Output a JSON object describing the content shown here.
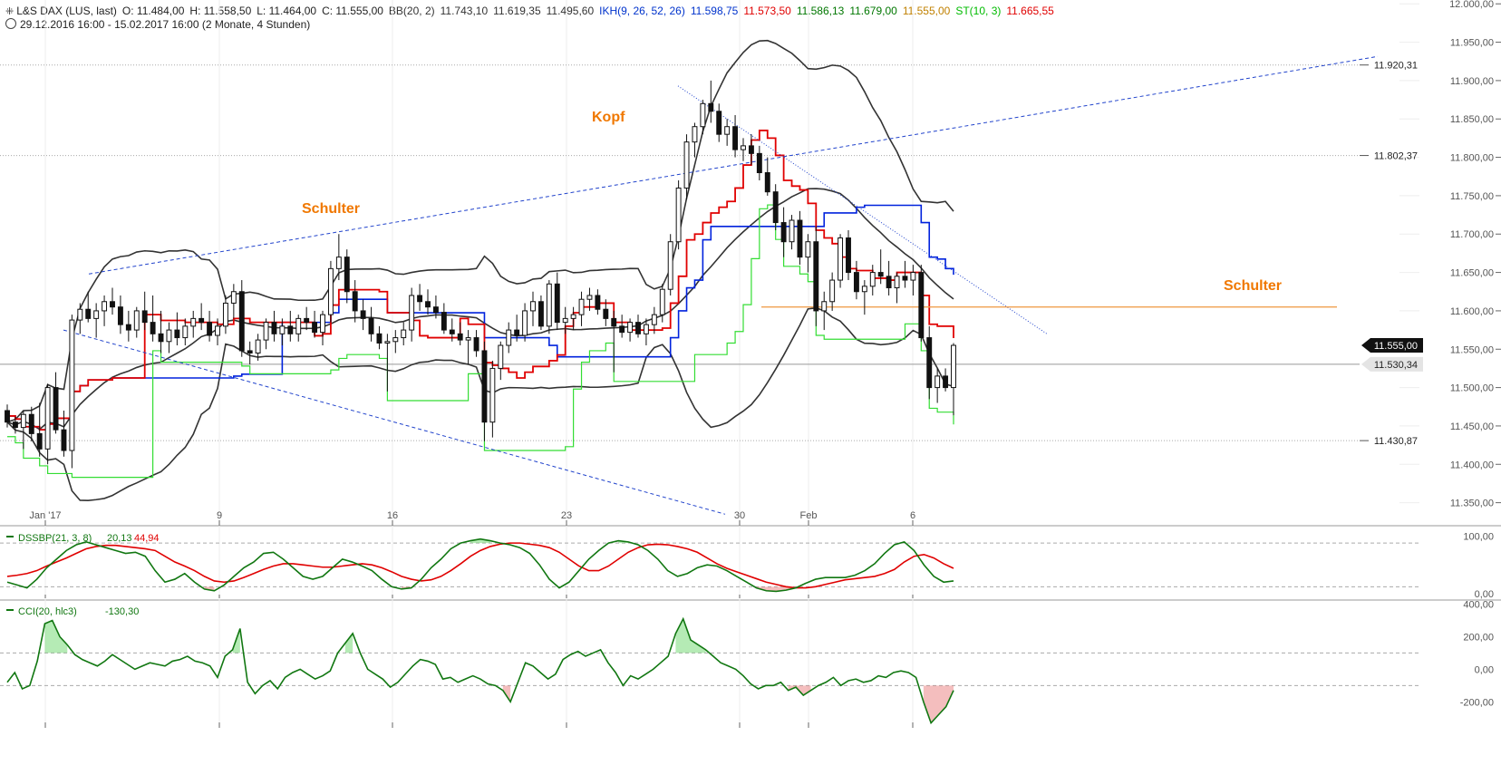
{
  "header": {
    "line1": [
      {
        "text": "L&S DAX (LUS, last)",
        "color": "#222222"
      },
      {
        "text": "O: 11.484,00",
        "color": "#222222"
      },
      {
        "text": "H: 11.558,50",
        "color": "#222222"
      },
      {
        "text": "L: 11.464,00",
        "color": "#222222"
      },
      {
        "text": "C: 11.555,00",
        "color": "#222222"
      },
      {
        "text": "BB(20, 2)",
        "color": "#333333"
      },
      {
        "text": "11.743,10",
        "color": "#333333"
      },
      {
        "text": "11.619,35",
        "color": "#333333"
      },
      {
        "text": "11.495,60",
        "color": "#333333"
      },
      {
        "text": "IKH(9, 26, 52, 26)",
        "color": "#0033cc"
      },
      {
        "text": "11.598,75",
        "color": "#0033cc"
      },
      {
        "text": "11.573,50",
        "color": "#e00000"
      },
      {
        "text": "11.586,13",
        "color": "#007700"
      },
      {
        "text": "11.679,00",
        "color": "#007700"
      },
      {
        "text": "11.555,00",
        "color": "#c08000"
      },
      {
        "text": "ST(10, 3)",
        "color": "#00bb00"
      },
      {
        "text": "11.665,55",
        "color": "#e00000"
      }
    ],
    "line2": "29.12.2016 16:00 - 15.02.2017 16:00   (2 Monate, 4 Stunden)"
  },
  "chart_data": [
    {
      "type": "candlestick",
      "name": "L&S DAX (LUS, last)",
      "y_ticks": [
        "12.000,00",
        "11.950,00",
        "11.900,00",
        "11.850,00",
        "11.800,00",
        "11.750,00",
        "11.700,00",
        "11.650,00",
        "11.600,00",
        "11.550,00",
        "11.500,00",
        "11.450,00",
        "11.400,00",
        "11.350,00"
      ],
      "ylim": [
        11320,
        12005
      ],
      "x_ticks": [
        "Jan '17",
        "9",
        "16",
        "23",
        "30",
        "Feb",
        "6"
      ],
      "price_labels": [
        "11.920,31",
        "11.802,37",
        "11.555,00",
        "11.530,34",
        "11.430,87"
      ],
      "annotations": [
        "Schulter",
        "Kopf",
        "Schulter"
      ],
      "candles": [
        [
          11470,
          11478,
          11448,
          11455
        ],
        [
          11455,
          11462,
          11440,
          11448
        ],
        [
          11448,
          11470,
          11420,
          11465
        ],
        [
          11465,
          11475,
          11430,
          11440
        ],
        [
          11440,
          11480,
          11410,
          11420
        ],
        [
          11420,
          11505,
          11400,
          11500
        ],
        [
          11500,
          11520,
          11440,
          11445
        ],
        [
          11445,
          11470,
          11410,
          11418
        ],
        [
          11418,
          11595,
          11395,
          11588
        ],
        [
          11588,
          11610,
          11570,
          11602
        ],
        [
          11602,
          11625,
          11585,
          11590
        ],
        [
          11590,
          11610,
          11565,
          11600
        ],
        [
          11600,
          11620,
          11580,
          11612
        ],
        [
          11612,
          11630,
          11595,
          11605
        ],
        [
          11605,
          11620,
          11570,
          11582
        ],
        [
          11582,
          11600,
          11560,
          11575
        ],
        [
          11575,
          11605,
          11565,
          11600
        ],
        [
          11600,
          11625,
          11575,
          11585
        ],
        [
          11585,
          11620,
          11560,
          11570
        ],
        [
          11570,
          11600,
          11545,
          11560
        ],
        [
          11560,
          11585,
          11545,
          11575
        ],
        [
          11575,
          11598,
          11555,
          11565
        ],
        [
          11565,
          11590,
          11555,
          11580
        ],
        [
          11580,
          11600,
          11565,
          11590
        ],
        [
          11590,
          11610,
          11575,
          11585
        ],
        [
          11585,
          11600,
          11560,
          11568
        ],
        [
          11568,
          11590,
          11555,
          11580
        ],
        [
          11580,
          11620,
          11570,
          11610
        ],
        [
          11610,
          11635,
          11590,
          11625
        ],
        [
          11625,
          11640,
          11540,
          11548
        ],
        [
          11548,
          11560,
          11530,
          11545
        ],
        [
          11545,
          11570,
          11535,
          11562
        ],
        [
          11562,
          11590,
          11550,
          11585
        ],
        [
          11585,
          11600,
          11560,
          11570
        ],
        [
          11570,
          11590,
          11555,
          11580
        ],
        [
          11580,
          11600,
          11560,
          11570
        ],
        [
          11570,
          11595,
          11560,
          11590
        ],
        [
          11590,
          11605,
          11575,
          11585
        ],
        [
          11585,
          11600,
          11565,
          11572
        ],
        [
          11572,
          11600,
          11555,
          11595
        ],
        [
          11595,
          11665,
          11585,
          11655
        ],
        [
          11655,
          11700,
          11640,
          11670
        ],
        [
          11670,
          11680,
          11610,
          11625
        ],
        [
          11625,
          11640,
          11585,
          11600
        ],
        [
          11600,
          11615,
          11575,
          11590
        ],
        [
          11590,
          11605,
          11560,
          11570
        ],
        [
          11570,
          11580,
          11550,
          11558
        ],
        [
          11558,
          11570,
          11495,
          11560
        ],
        [
          11560,
          11575,
          11545,
          11565
        ],
        [
          11565,
          11585,
          11555,
          11575
        ],
        [
          11575,
          11630,
          11560,
          11620
        ],
        [
          11620,
          11635,
          11600,
          11612
        ],
        [
          11612,
          11628,
          11595,
          11605
        ],
        [
          11605,
          11620,
          11590,
          11598
        ],
        [
          11598,
          11610,
          11570,
          11575
        ],
        [
          11575,
          11590,
          11560,
          11570
        ],
        [
          11570,
          11585,
          11555,
          11562
        ],
        [
          11562,
          11575,
          11530,
          11565
        ],
        [
          11565,
          11575,
          11540,
          11548
        ],
        [
          11548,
          11560,
          11430,
          11455
        ],
        [
          11455,
          11535,
          11435,
          11525
        ],
        [
          11525,
          11560,
          11510,
          11555
        ],
        [
          11555,
          11585,
          11545,
          11575
        ],
        [
          11575,
          11595,
          11560,
          11568
        ],
        [
          11568,
          11610,
          11560,
          11600
        ],
        [
          11600,
          11625,
          11580,
          11612
        ],
        [
          11612,
          11620,
          11575,
          11580
        ],
        [
          11580,
          11640,
          11570,
          11635
        ],
        [
          11635,
          11650,
          11575,
          11585
        ],
        [
          11585,
          11605,
          11570,
          11590
        ],
        [
          11590,
          11605,
          11575,
          11595
        ],
        [
          11595,
          11625,
          11580,
          11615
        ],
        [
          11615,
          11630,
          11600,
          11620
        ],
        [
          11620,
          11628,
          11595,
          11602
        ],
        [
          11602,
          11615,
          11580,
          11590
        ],
        [
          11590,
          11600,
          11520,
          11580
        ],
        [
          11580,
          11595,
          11565,
          11572
        ],
        [
          11572,
          11590,
          11560,
          11585
        ],
        [
          11585,
          11595,
          11565,
          11570
        ],
        [
          11570,
          11590,
          11555,
          11582
        ],
        [
          11582,
          11605,
          11570,
          11595
        ],
        [
          11595,
          11635,
          11585,
          11628
        ],
        [
          11628,
          11700,
          11620,
          11690
        ],
        [
          11690,
          11770,
          11680,
          11760
        ],
        [
          11760,
          11830,
          11745,
          11820
        ],
        [
          11820,
          11845,
          11800,
          11840
        ],
        [
          11840,
          11875,
          11830,
          11870
        ],
        [
          11870,
          11900,
          11845,
          11860
        ],
        [
          11860,
          11870,
          11820,
          11830
        ],
        [
          11830,
          11850,
          11815,
          11840
        ],
        [
          11840,
          11855,
          11800,
          11810
        ],
        [
          11810,
          11825,
          11795,
          11815
        ],
        [
          11815,
          11830,
          11790,
          11805
        ],
        [
          11805,
          11815,
          11770,
          11780
        ],
        [
          11780,
          11800,
          11750,
          11755
        ],
        [
          11755,
          11765,
          11705,
          11715
        ],
        [
          11715,
          11735,
          11670,
          11690
        ],
        [
          11690,
          11725,
          11680,
          11718
        ],
        [
          11718,
          11730,
          11660,
          11670
        ],
        [
          11670,
          11700,
          11650,
          11690
        ],
        [
          11690,
          11710,
          11580,
          11600
        ],
        [
          11600,
          11625,
          11575,
          11612
        ],
        [
          11612,
          11650,
          11600,
          11640
        ],
        [
          11640,
          11700,
          11630,
          11695
        ],
        [
          11695,
          11705,
          11640,
          11650
        ],
        [
          11650,
          11665,
          11615,
          11625
        ],
        [
          11625,
          11640,
          11595,
          11632
        ],
        [
          11632,
          11660,
          11620,
          11650
        ],
        [
          11650,
          11680,
          11635,
          11645
        ],
        [
          11645,
          11665,
          11620,
          11630
        ],
        [
          11630,
          11650,
          11610,
          11645
        ],
        [
          11645,
          11665,
          11630,
          11640
        ],
        [
          11640,
          11660,
          11620,
          11650
        ],
        [
          11650,
          11660,
          11560,
          11565
        ],
        [
          11565,
          11580,
          11485,
          11500
        ],
        [
          11500,
          11525,
          11480,
          11515
        ],
        [
          11515,
          11525,
          11495,
          11500
        ],
        [
          11500,
          11558,
          11464,
          11555
        ]
      ]
    },
    {
      "type": "line",
      "name": "DSSBP(21, 3, 8)",
      "values_shown": [
        "20,13",
        "44,94"
      ],
      "y_ticks": [
        "100,00",
        "0,00"
      ],
      "ylim": [
        -8,
        115
      ],
      "series": [
        {
          "values": [
            20,
            15,
            10,
            25,
            45,
            60,
            75,
            85,
            90,
            85,
            80,
            75,
            70,
            72,
            65,
            40,
            20,
            25,
            35,
            20,
            8,
            5,
            15,
            30,
            45,
            55,
            70,
            72,
            60,
            45,
            30,
            25,
            30,
            45,
            60,
            55,
            48,
            40,
            25,
            12,
            8,
            10,
            25,
            45,
            60,
            78,
            88,
            92,
            95,
            92,
            88,
            85,
            80,
            70,
            50,
            25,
            10,
            20,
            40,
            60,
            75,
            88,
            92,
            90,
            85,
            75,
            60,
            40,
            30,
            35,
            45,
            50,
            48,
            40,
            30,
            20,
            10,
            5,
            4,
            6,
            10,
            18,
            25,
            28,
            28,
            28,
            32,
            40,
            52,
            70,
            85,
            90,
            75,
            50,
            30,
            20,
            22
          ]
        },
        {
          "values": [
            30,
            32,
            35,
            40,
            48,
            55,
            62,
            70,
            78,
            82,
            84,
            84,
            82,
            80,
            78,
            75,
            65,
            55,
            48,
            40,
            30,
            22,
            20,
            22,
            28,
            35,
            42,
            48,
            52,
            52,
            50,
            48,
            46,
            46,
            48,
            50,
            52,
            50,
            45,
            38,
            30,
            25,
            22,
            24,
            30,
            40,
            52,
            65,
            75,
            82,
            86,
            88,
            88,
            86,
            84,
            80,
            72,
            60,
            48,
            40,
            40,
            48,
            60,
            72,
            80,
            85,
            86,
            85,
            82,
            78,
            72,
            62,
            52,
            44,
            38,
            32,
            26,
            20,
            16,
            12,
            10,
            10,
            12,
            16,
            20,
            24,
            26,
            28,
            30,
            35,
            42,
            55,
            65,
            68,
            62,
            52,
            44
          ]
        }
      ]
    },
    {
      "type": "line",
      "name": "CCI(20, hlc3)",
      "values_shown": [
        "-130,30"
      ],
      "y_ticks": [
        "400,00",
        "200,00",
        "0,00",
        "-200,00"
      ],
      "ylim": [
        -360,
        420
      ],
      "values": [
        -80,
        -20,
        -120,
        -100,
        50,
        280,
        300,
        200,
        150,
        90,
        60,
        40,
        20,
        50,
        90,
        60,
        30,
        0,
        20,
        40,
        30,
        20,
        50,
        60,
        80,
        50,
        40,
        20,
        -50,
        80,
        120,
        250,
        -80,
        -150,
        -100,
        -70,
        -120,
        -50,
        -20,
        0,
        -30,
        -60,
        -40,
        -10,
        100,
        160,
        220,
        100,
        0,
        -30,
        -60,
        -110,
        -80,
        -30,
        20,
        60,
        50,
        30,
        -60,
        -50,
        -80,
        -60,
        -40,
        -60,
        -90,
        -100,
        -130,
        -200,
        -80,
        40,
        20,
        -20,
        -60,
        -30,
        60,
        90,
        110,
        80,
        100,
        120,
        40,
        -20,
        -100,
        -40,
        -60,
        -30,
        0,
        40,
        80,
        220,
        310,
        180,
        150,
        120,
        80,
        40,
        20,
        0,
        -40,
        -90,
        -120,
        -100,
        -100,
        -80,
        -130,
        -110,
        -160,
        -130,
        -100,
        -80,
        -50,
        -100,
        -70,
        -60,
        -80,
        -70,
        -40,
        -50,
        -20,
        -10,
        -20,
        -50,
        -200,
        -330,
        -280,
        -230,
        -130
      ]
    }
  ]
}
